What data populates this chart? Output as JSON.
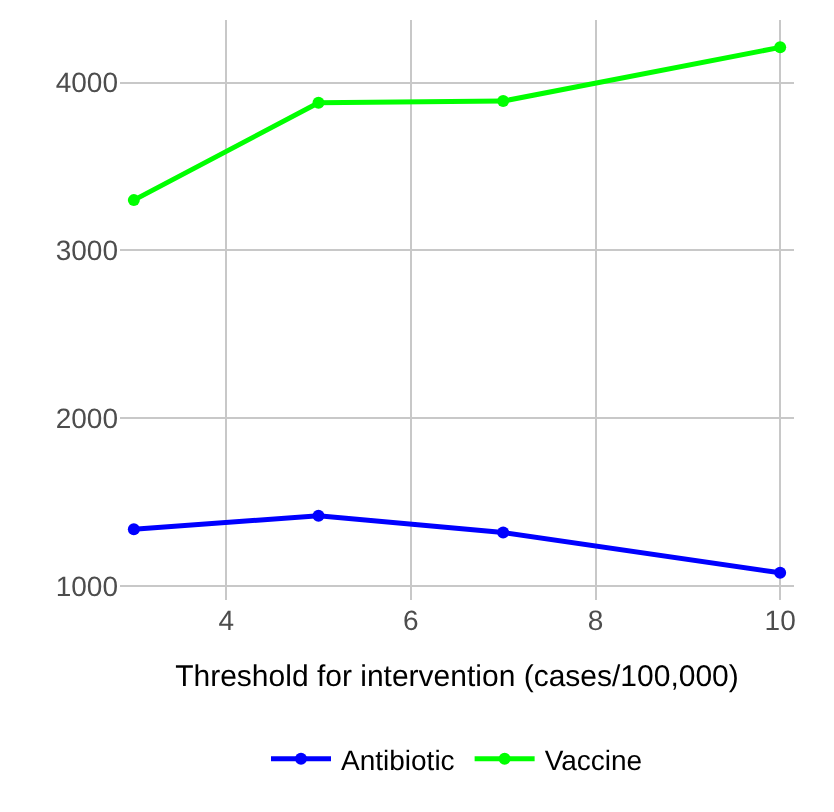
{
  "chart_data": {
    "type": "line",
    "xlabel": "Threshold for intervention (cases/100,000)",
    "x": [
      3,
      5,
      7,
      10
    ],
    "series": [
      {
        "name": "Antibiotic",
        "color": "#0000ff",
        "values": [
          1340,
          1420,
          1320,
          1080
        ]
      },
      {
        "name": "Vaccine",
        "color": "#00ff00",
        "values": [
          3300,
          3880,
          3890,
          4210
        ]
      }
    ],
    "xlim": [
      2.85,
      10.15
    ],
    "xticks": [
      4,
      6,
      8,
      10
    ],
    "ylim": [
      918,
      4373
    ],
    "yticks": [
      1000,
      2000,
      3000,
      4000
    ],
    "grid": true,
    "legend": "bottom",
    "marker": "circle",
    "line_style": "solid"
  }
}
